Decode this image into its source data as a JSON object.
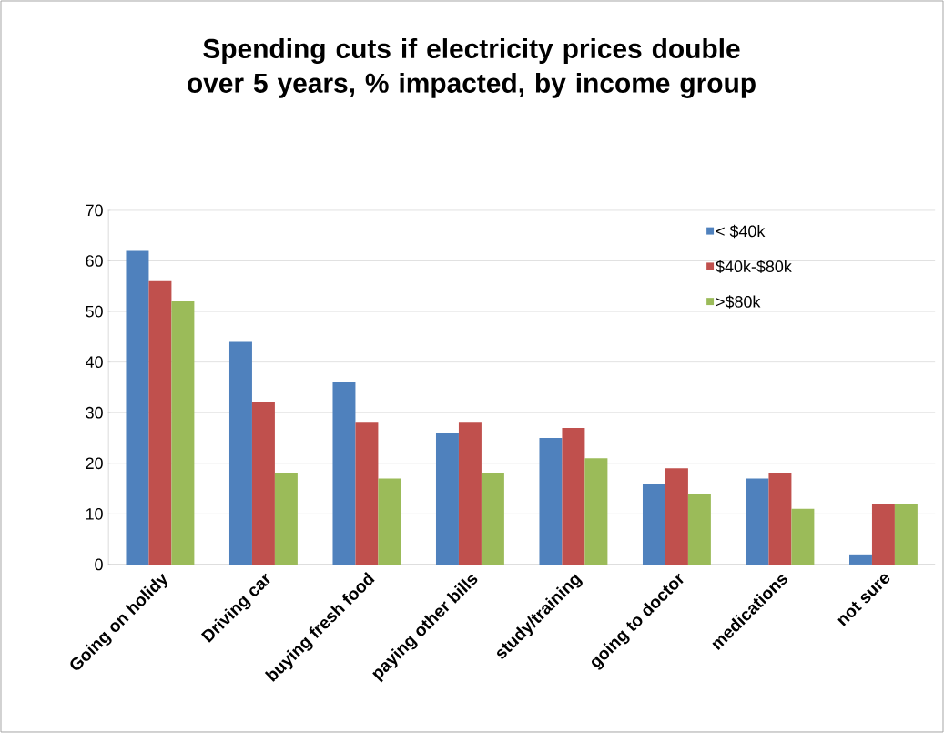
{
  "chart_data": {
    "type": "bar",
    "title": "Spending cuts if electricity prices double over 5 years, % impacted, by income group",
    "categories": [
      "Going on holidy",
      "Driving car",
      "buying fresh food",
      "paying other bills",
      "study/training",
      "going to doctor",
      "medications",
      "not sure"
    ],
    "series": [
      {
        "name": "< $40k",
        "color": "#4f81bd",
        "values": [
          62,
          44,
          36,
          26,
          25,
          16,
          17,
          2
        ]
      },
      {
        "name": "$40k-$80k",
        "color": "#c0504d",
        "values": [
          56,
          32,
          28,
          28,
          27,
          19,
          18,
          12
        ]
      },
      {
        "name": ">$80k",
        "color": "#9bbb59",
        "values": [
          52,
          18,
          17,
          18,
          21,
          14,
          11,
          12
        ]
      }
    ],
    "ylim": [
      0,
      70
    ],
    "yticks": [
      0,
      10,
      20,
      30,
      40,
      50,
      60,
      70
    ],
    "grid": "y",
    "legend": "top right"
  }
}
